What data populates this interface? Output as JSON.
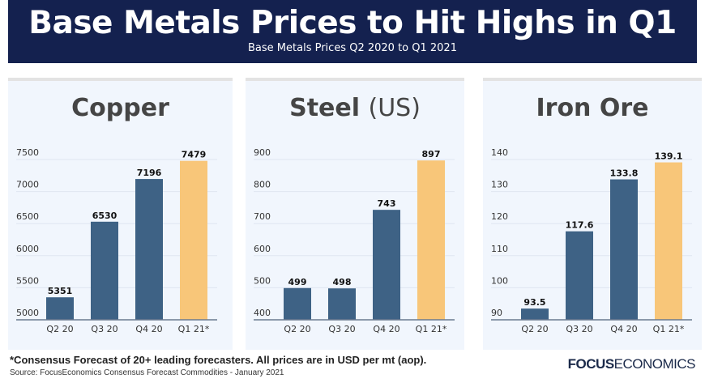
{
  "header": {
    "title": "Base Metals Prices to Hit Highs in Q1",
    "subtitle": "Base Metals Prices Q2 2020 to Q1 2021"
  },
  "colors": {
    "actual": "#3e6285",
    "forecast": "#f8c679",
    "header": "#14214f"
  },
  "chart_data": [
    {
      "type": "bar",
      "title": "Copper",
      "title_suffix": "",
      "categories": [
        "Q2 20",
        "Q3 20",
        "Q4 20",
        "Q1 21*"
      ],
      "values": [
        5351,
        6530,
        7196,
        7479
      ],
      "labels": [
        "5351",
        "6530",
        "7196",
        "7479"
      ],
      "ylim": [
        5000,
        7500
      ],
      "yticks": [
        5000,
        5500,
        6000,
        6500,
        7000,
        7500
      ],
      "grid": true,
      "forecast_index": 3
    },
    {
      "type": "bar",
      "title": "Steel",
      "title_suffix": "(US)",
      "categories": [
        "Q2 20",
        "Q3 20",
        "Q4 20",
        "Q1 21*"
      ],
      "values": [
        499,
        498,
        743,
        897
      ],
      "labels": [
        "499",
        "498",
        "743",
        "897"
      ],
      "ylim": [
        400,
        900
      ],
      "yticks": [
        400,
        500,
        600,
        700,
        800,
        900
      ],
      "grid": true,
      "forecast_index": 3
    },
    {
      "type": "bar",
      "title": "Iron Ore",
      "title_suffix": "",
      "categories": [
        "Q2 20",
        "Q3 20",
        "Q4 20",
        "Q1 21*"
      ],
      "values": [
        93.5,
        117.6,
        133.8,
        139.1
      ],
      "labels": [
        "93.5",
        "117.6",
        "133.8",
        "139.1"
      ],
      "ylim": [
        90,
        140
      ],
      "yticks": [
        90,
        100,
        110,
        120,
        130,
        140
      ],
      "grid": true,
      "forecast_index": 3
    }
  ],
  "footer": {
    "note": "*Consensus Forecast of 20+ leading forecasters. All prices are in USD per mt (aop).",
    "source": "Source: FocusEconomics Consensus Forecast Commodities - January 2021",
    "logo_bold": "FOCUS",
    "logo_light": "ECONOMICS"
  }
}
